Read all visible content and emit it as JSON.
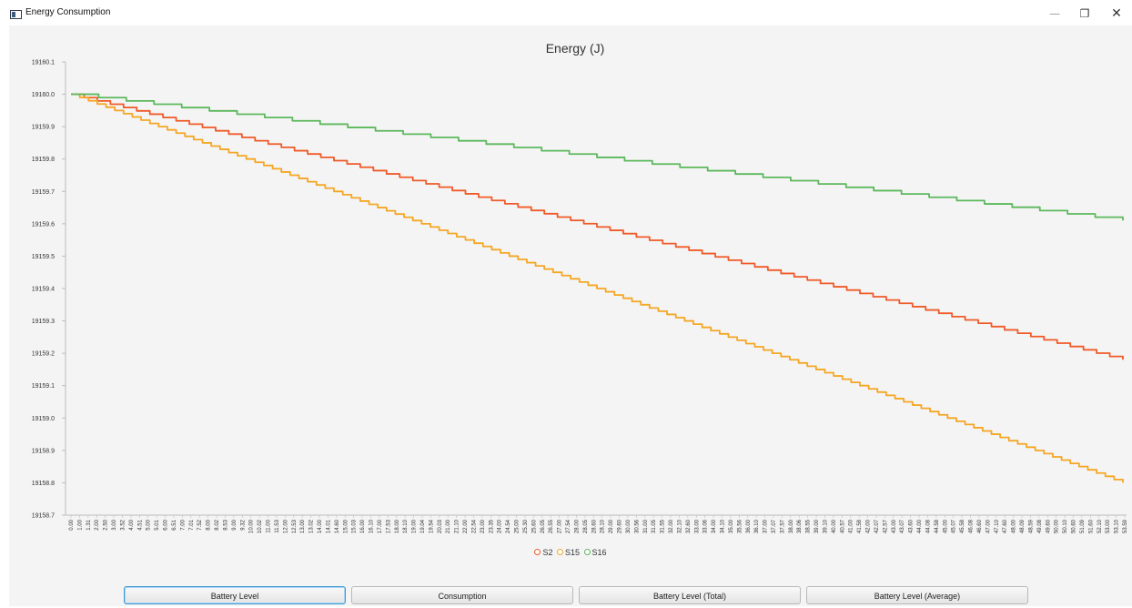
{
  "window": {
    "title": "Energy Consumption",
    "controls": {
      "minimize": "—",
      "maximize": "❐",
      "close": "✕"
    }
  },
  "buttons": [
    {
      "label": "Battery Level",
      "selected": true
    },
    {
      "label": "Consumption",
      "selected": false
    },
    {
      "label": "Battery Level (Total)",
      "selected": false
    },
    {
      "label": "Battery Level (Average)",
      "selected": false
    }
  ],
  "chart_data": {
    "type": "line",
    "title": "Energy (J)",
    "xlabel": "",
    "ylabel": "",
    "ylim": [
      19158.7,
      19160.1
    ],
    "y_ticks": [
      "19160.1",
      "19160.0",
      "19159.9",
      "19159.8",
      "19159.7",
      "19159.6",
      "19159.5",
      "19159.4",
      "19159.3",
      "19159.2",
      "19159.1",
      "19159.0",
      "19158.9",
      "19158.8",
      "19158.7"
    ],
    "x_tick_labels": [
      "0.00",
      "1.00",
      "1.31",
      "2.00",
      "2.50",
      "3.00",
      "3.52",
      "4.00",
      "4.51",
      "5.00",
      "5.01",
      "6.00",
      "6.51",
      "7.00",
      "7.01",
      "7.52",
      "8.00",
      "8.02",
      "8.53",
      "9.00",
      "9.32",
      "10.00",
      "10.02",
      "11.00",
      "11.53",
      "12.00",
      "12.53",
      "13.00",
      "13.02",
      "14.00",
      "14.01",
      "14.60",
      "15.00",
      "15.03",
      "16.00",
      "16.10",
      "17.00",
      "17.53",
      "18.00",
      "18.10",
      "19.00",
      "19.04",
      "19.54",
      "20.03",
      "21.00",
      "21.10",
      "22.00",
      "22.54",
      "23.00",
      "23.35",
      "24.00",
      "24.54",
      "25.00",
      "25.30",
      "25.60",
      "26.05",
      "26.55",
      "27.00",
      "27.54",
      "28.00",
      "28.05",
      "28.60",
      "28.10",
      "29.00",
      "29.60",
      "30.00",
      "30.56",
      "31.00",
      "31.05",
      "31.55",
      "32.00",
      "32.10",
      "32.60",
      "33.00",
      "33.06",
      "34.00",
      "34.10",
      "35.00",
      "35.56",
      "36.00",
      "36.10",
      "37.00",
      "37.07",
      "37.57",
      "38.00",
      "38.06",
      "38.55",
      "39.00",
      "39.10",
      "40.00",
      "40.57",
      "41.00",
      "41.58",
      "42.00",
      "42.07",
      "42.57",
      "43.00",
      "43.07",
      "43.60",
      "44.00",
      "44.08",
      "44.58",
      "45.00",
      "45.07",
      "45.58",
      "46.08",
      "46.60",
      "47.00",
      "47.10",
      "47.60",
      "48.00",
      "48.09",
      "48.59",
      "49.08",
      "49.60",
      "50.00",
      "50.10",
      "50.60",
      "51.09",
      "51.60",
      "52.10",
      "53.00",
      "53.10",
      "53.59"
    ],
    "legend_placement": "bottom-center",
    "grid": false,
    "series": [
      {
        "name": "S2",
        "color": "#f05a28",
        "start": 19160.0,
        "end": 19159.18,
        "steps": 80
      },
      {
        "name": "S15",
        "color": "#f5a623",
        "start": 19160.0,
        "end": 19158.8,
        "steps": 120
      },
      {
        "name": "S16",
        "color": "#5cb85c",
        "start": 19160.0,
        "end": 19159.61,
        "steps": 38
      }
    ]
  }
}
